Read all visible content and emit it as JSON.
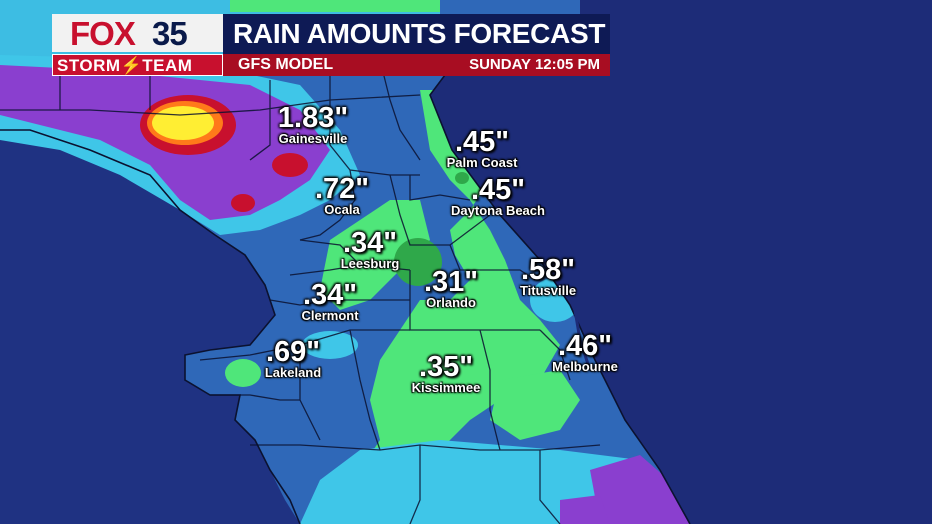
{
  "branding": {
    "logo_fox": "FOX",
    "logo_number": "35",
    "storm_team": "STORM⚡TEAM"
  },
  "title": "RAIN AMOUNTS FORECAST",
  "model": "GFS MODEL",
  "time_label": "SUNDAY  12:05 PM",
  "colors": {
    "ocean": "#1d2c78",
    "land_base": "#2f68b8",
    "light_rain": "#3fc6e8",
    "green": "#4fe67a",
    "purple": "#8a3fcf",
    "red": "#c8102e",
    "yellow": "#ffee33"
  },
  "cities": [
    {
      "id": "gainesville",
      "name": "Gainesville",
      "amount": "1.83\""
    },
    {
      "id": "palm-coast",
      "name": "Palm Coast",
      "amount": ".45\""
    },
    {
      "id": "ocala",
      "name": "Ocala",
      "amount": ".72\""
    },
    {
      "id": "daytona-beach",
      "name": "Daytona Beach",
      "amount": ".45\""
    },
    {
      "id": "leesburg",
      "name": "Leesburg",
      "amount": ".34\""
    },
    {
      "id": "orlando",
      "name": "Orlando",
      "amount": ".31\""
    },
    {
      "id": "titusville",
      "name": "Titusville",
      "amount": ".58\""
    },
    {
      "id": "clermont",
      "name": "Clermont",
      "amount": ".34\""
    },
    {
      "id": "lakeland",
      "name": "Lakeland",
      "amount": ".69\""
    },
    {
      "id": "melbourne",
      "name": "Melbourne",
      "amount": ".46\""
    },
    {
      "id": "kissimmee",
      "name": "Kissimmee",
      "amount": ".35\""
    }
  ]
}
